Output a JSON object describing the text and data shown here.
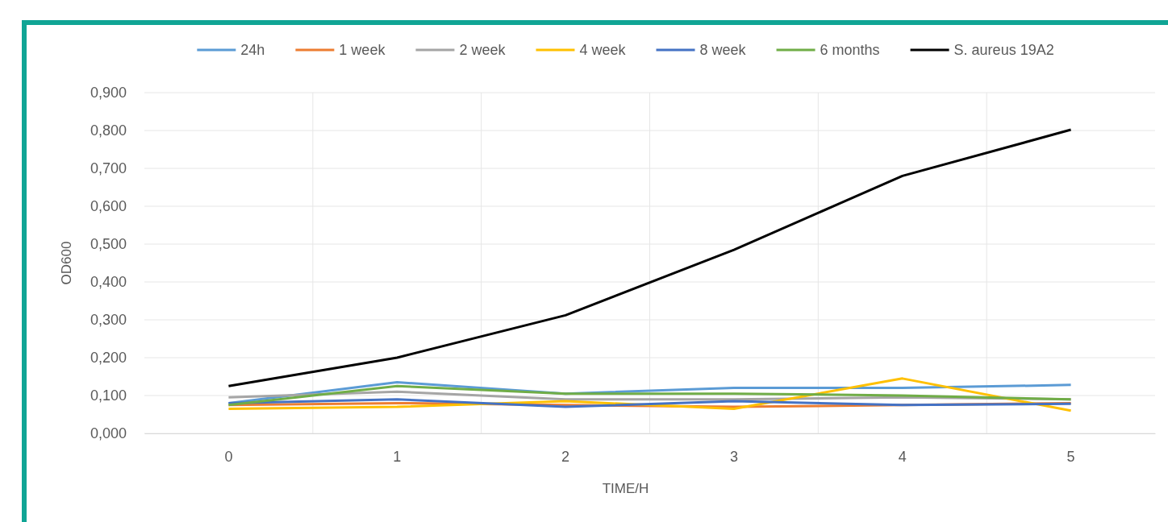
{
  "chart_data": {
    "type": "line",
    "xlabel": "TIME/H",
    "ylabel": "OD600",
    "categories": [
      "0",
      "1",
      "2",
      "3",
      "4",
      "5"
    ],
    "ylim": [
      0,
      0.9
    ],
    "yticks": [
      {
        "value": 0,
        "label": "0,000"
      },
      {
        "value": 0.1,
        "label": "0,100"
      },
      {
        "value": 0.2,
        "label": "0,200"
      },
      {
        "value": 0.3,
        "label": "0,300"
      },
      {
        "value": 0.4,
        "label": "0,400"
      },
      {
        "value": 0.5,
        "label": "0,500"
      },
      {
        "value": 0.6,
        "label": "0,600"
      },
      {
        "value": 0.7,
        "label": "0,700"
      },
      {
        "value": 0.8,
        "label": "0,800"
      },
      {
        "value": 0.9,
        "label": "0,900"
      }
    ],
    "grid": true,
    "legend": "top",
    "marker": "none",
    "line_style": "solid",
    "series": [
      {
        "name": "24h",
        "color": "#5b9bd5",
        "values": [
          0.08,
          0.135,
          0.105,
          0.12,
          0.12,
          0.128
        ]
      },
      {
        "name": "1 week",
        "color": "#ed7d31",
        "values": [
          0.075,
          0.08,
          0.075,
          0.07,
          0.075,
          0.08
        ]
      },
      {
        "name": "2 week",
        "color": "#a5a5a5",
        "values": [
          0.095,
          0.11,
          0.09,
          0.09,
          0.095,
          0.09
        ]
      },
      {
        "name": "4 week",
        "color": "#ffc000",
        "values": [
          0.065,
          0.07,
          0.085,
          0.065,
          0.145,
          0.06
        ]
      },
      {
        "name": "8 week",
        "color": "#4472c4",
        "values": [
          0.08,
          0.09,
          0.07,
          0.085,
          0.075,
          0.078
        ]
      },
      {
        "name": "6 months",
        "color": "#70ad47",
        "values": [
          0.075,
          0.125,
          0.105,
          0.105,
          0.1,
          0.09
        ]
      },
      {
        "name": "S. aureus 19A2",
        "color": "#000000",
        "values": [
          0.125,
          0.2,
          0.312,
          0.485,
          0.68,
          0.802
        ]
      }
    ]
  }
}
